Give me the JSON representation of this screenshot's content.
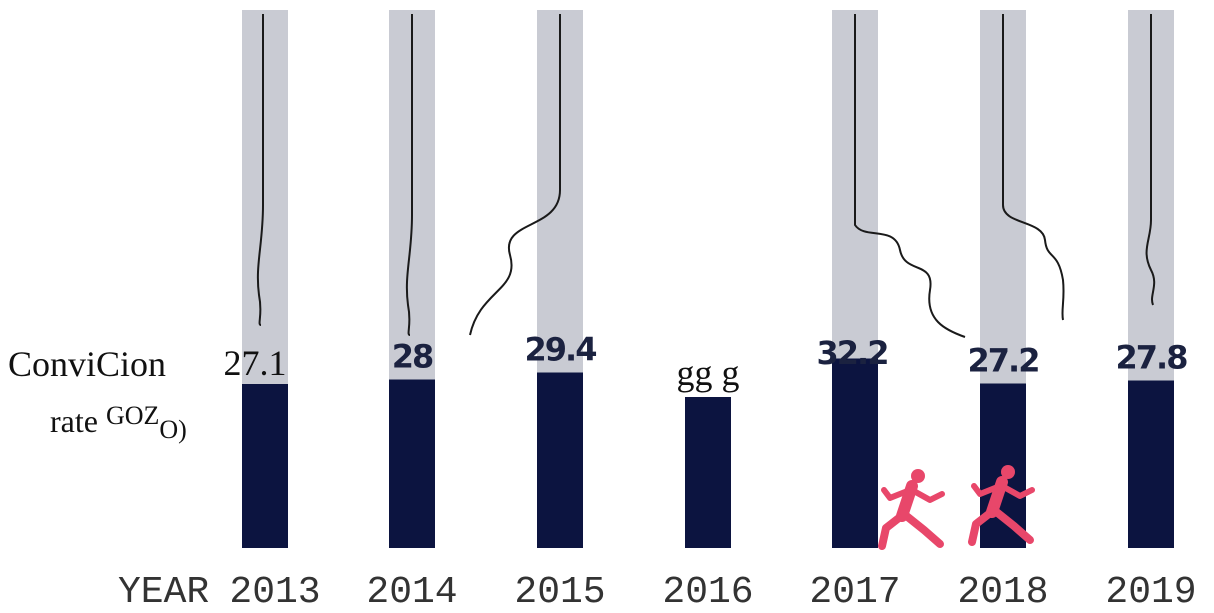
{
  "chart_data": {
    "type": "bar",
    "title": "",
    "ylabel": "ConviCion rate GOZO)",
    "ylabel_parts": {
      "line1": "ConviCion",
      "line2": "rate",
      "superscript": "GOZ",
      "subscript": "O)"
    },
    "xlabel": "YEAR",
    "categories": [
      "2013",
      "2014",
      "2015",
      "2016",
      "2017",
      "2018",
      "2019"
    ],
    "values": [
      27.1,
      28,
      29.4,
      24.5,
      32.2,
      27.2,
      27.8
    ],
    "value_labels": [
      "27.1",
      "28",
      "29.4",
      "gg g",
      "32.2",
      "27.2",
      "27.8"
    ],
    "ylim": [
      0,
      40
    ],
    "grid": false,
    "legend": "none",
    "colors": {
      "bar": "#0c1440",
      "column_background": "#c9cbd3",
      "rope": "#1a1a1a",
      "runner": "#e8476a"
    },
    "icons": [
      "rope-icon",
      "running-figure-icon"
    ]
  }
}
